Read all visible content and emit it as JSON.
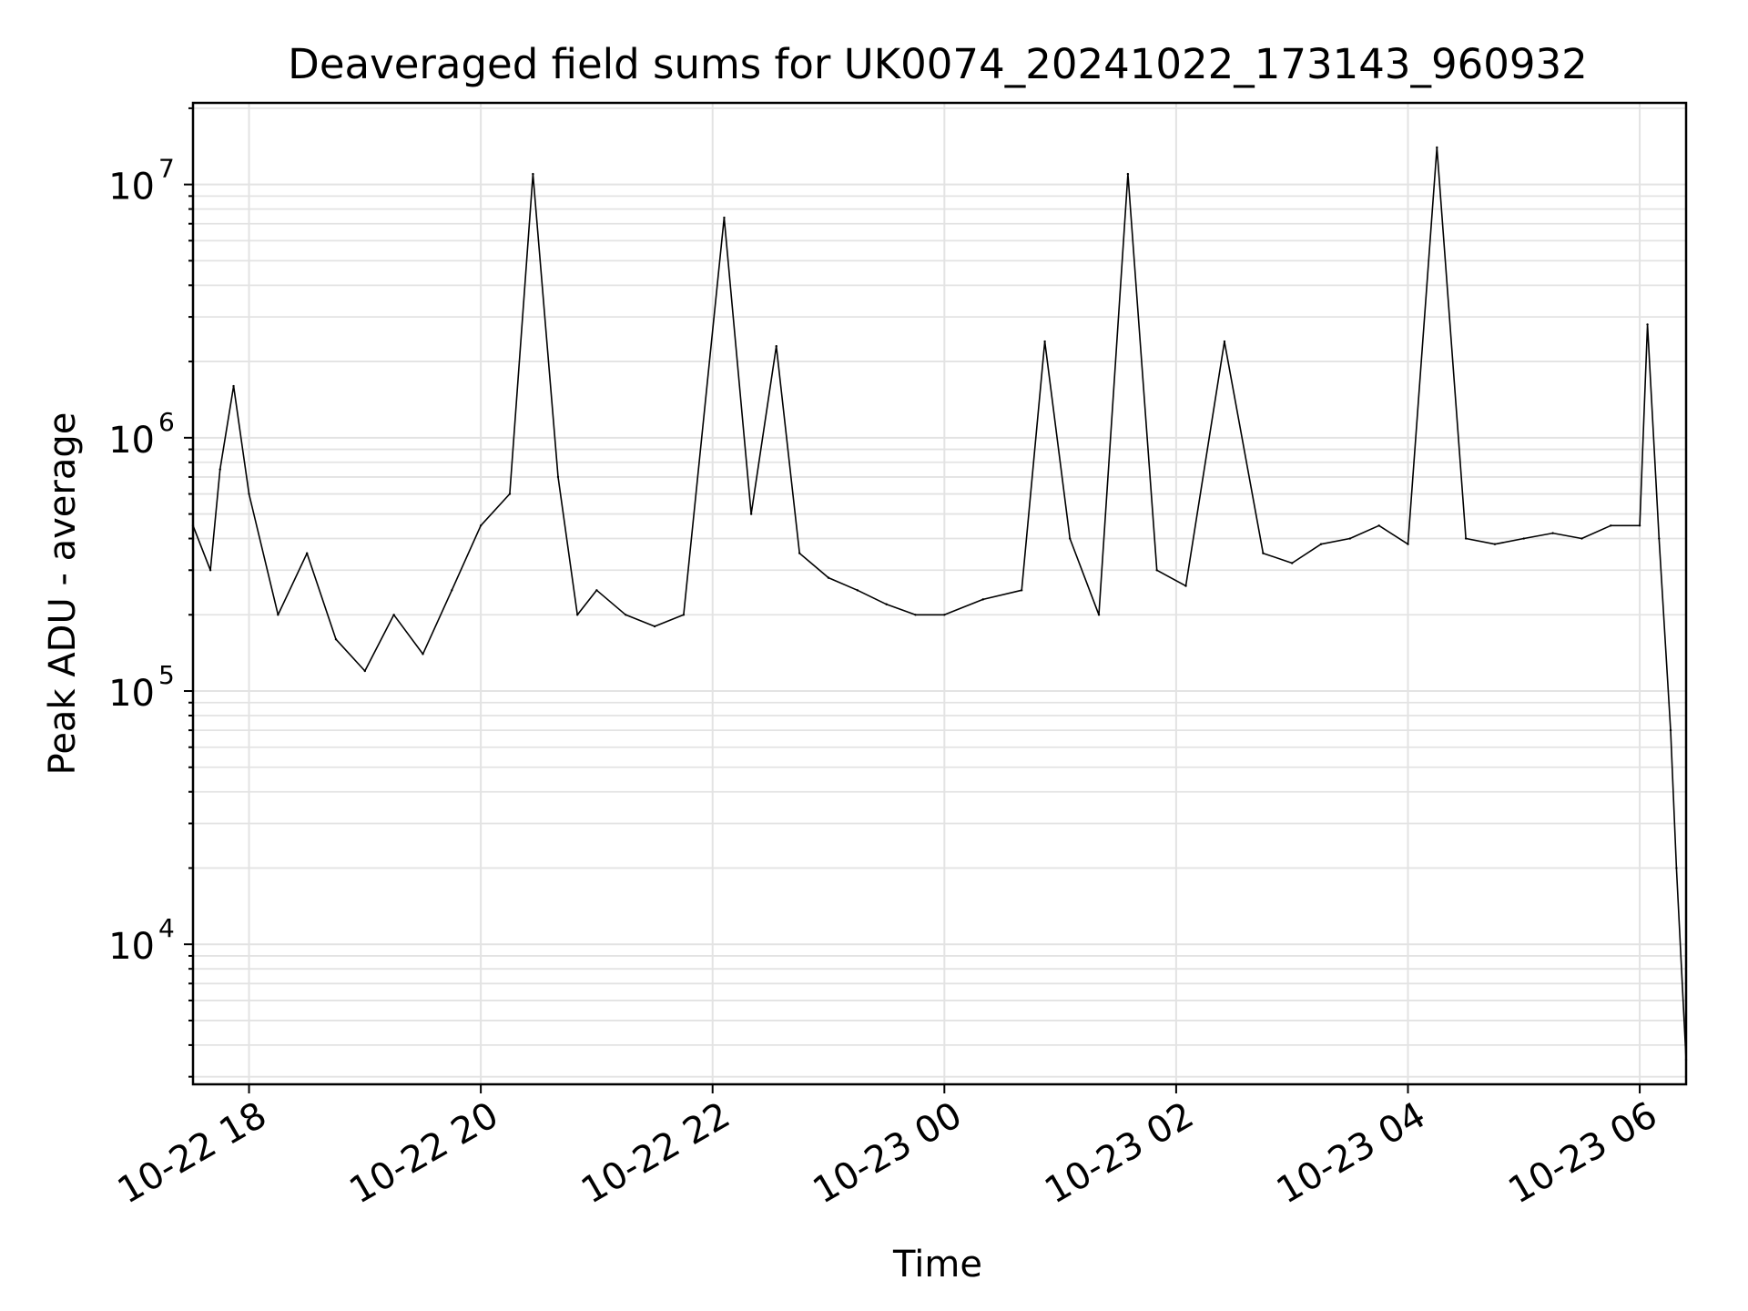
{
  "chart_data": {
    "type": "line",
    "title": "Deaveraged field sums for UK0074_20241022_173143_960932",
    "xlabel": "Time",
    "ylabel": "Peak ADU - average",
    "yscale": "log",
    "ylim": [
      2800,
      21000000
    ],
    "xlim": [
      "2024-10-22 17:31",
      "2024-10-23 06:24"
    ],
    "grid": true,
    "legend": "none",
    "line_color": "#000000",
    "x_ticks": [
      {
        "value": "2024-10-22 18:00",
        "label": "10-22 18"
      },
      {
        "value": "2024-10-22 20:00",
        "label": "10-22 20"
      },
      {
        "value": "2024-10-22 22:00",
        "label": "10-22 22"
      },
      {
        "value": "2024-10-23 00:00",
        "label": "10-23 00"
      },
      {
        "value": "2024-10-23 02:00",
        "label": "10-23 02"
      },
      {
        "value": "2024-10-23 04:00",
        "label": "10-23 04"
      },
      {
        "value": "2024-10-23 06:00",
        "label": "10-23 06"
      }
    ],
    "y_ticks": [
      {
        "value": 10000,
        "base": "10",
        "exp": "4"
      },
      {
        "value": 100000,
        "base": "10",
        "exp": "5"
      },
      {
        "value": 1000000,
        "base": "10",
        "exp": "6"
      },
      {
        "value": 10000000,
        "base": "10",
        "exp": "7"
      }
    ],
    "series": [
      {
        "values": [
          [
            "2024-10-22 17:31",
            450000
          ],
          [
            "2024-10-22 17:40",
            300000
          ],
          [
            "2024-10-22 17:45",
            750000
          ],
          [
            "2024-10-22 17:52",
            1600000
          ],
          [
            "2024-10-22 18:00",
            600000
          ],
          [
            "2024-10-22 18:15",
            200000
          ],
          [
            "2024-10-22 18:30",
            350000
          ],
          [
            "2024-10-22 18:45",
            160000
          ],
          [
            "2024-10-22 19:00",
            120000
          ],
          [
            "2024-10-22 19:15",
            200000
          ],
          [
            "2024-10-22 19:30",
            140000
          ],
          [
            "2024-10-22 19:45",
            250000
          ],
          [
            "2024-10-22 20:00",
            450000
          ],
          [
            "2024-10-22 20:15",
            600000
          ],
          [
            "2024-10-22 20:27",
            11000000
          ],
          [
            "2024-10-22 20:40",
            700000
          ],
          [
            "2024-10-22 20:50",
            200000
          ],
          [
            "2024-10-22 21:00",
            250000
          ],
          [
            "2024-10-22 21:15",
            200000
          ],
          [
            "2024-10-22 21:30",
            180000
          ],
          [
            "2024-10-22 21:45",
            200000
          ],
          [
            "2024-10-22 22:06",
            7400000
          ],
          [
            "2024-10-22 22:20",
            500000
          ],
          [
            "2024-10-22 22:33",
            2300000
          ],
          [
            "2024-10-22 22:45",
            350000
          ],
          [
            "2024-10-22 23:00",
            280000
          ],
          [
            "2024-10-22 23:15",
            250000
          ],
          [
            "2024-10-22 23:30",
            220000
          ],
          [
            "2024-10-22 23:45",
            200000
          ],
          [
            "2024-10-23 00:00",
            200000
          ],
          [
            "2024-10-23 00:20",
            230000
          ],
          [
            "2024-10-23 00:40",
            250000
          ],
          [
            "2024-10-23 00:52",
            2400000
          ],
          [
            "2024-10-23 01:05",
            400000
          ],
          [
            "2024-10-23 01:20",
            200000
          ],
          [
            "2024-10-23 01:35",
            11000000
          ],
          [
            "2024-10-23 01:50",
            300000
          ],
          [
            "2024-10-23 02:05",
            260000
          ],
          [
            "2024-10-23 02:25",
            2400000
          ],
          [
            "2024-10-23 02:45",
            350000
          ],
          [
            "2024-10-23 03:00",
            320000
          ],
          [
            "2024-10-23 03:15",
            380000
          ],
          [
            "2024-10-23 03:30",
            400000
          ],
          [
            "2024-10-23 03:45",
            450000
          ],
          [
            "2024-10-23 04:00",
            380000
          ],
          [
            "2024-10-23 04:15",
            14000000
          ],
          [
            "2024-10-23 04:30",
            400000
          ],
          [
            "2024-10-23 04:45",
            380000
          ],
          [
            "2024-10-23 05:00",
            400000
          ],
          [
            "2024-10-23 05:15",
            420000
          ],
          [
            "2024-10-23 05:30",
            400000
          ],
          [
            "2024-10-23 05:45",
            450000
          ],
          [
            "2024-10-23 06:00",
            450000
          ],
          [
            "2024-10-23 06:04",
            2800000
          ],
          [
            "2024-10-23 06:10",
            400000
          ],
          [
            "2024-10-23 06:16",
            70000
          ],
          [
            "2024-10-23 06:19",
            20000
          ],
          [
            "2024-10-23 06:24",
            3500
          ]
        ]
      }
    ]
  }
}
